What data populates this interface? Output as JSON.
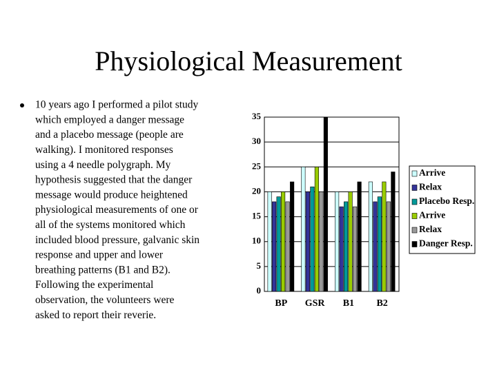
{
  "slide": {
    "title": "Physiological Measurement",
    "bullet_lines": [
      "10 years ago I performed a pilot study",
      "which employed a danger message",
      "and a placebo message (people are",
      "walking).  I monitored responses",
      "using a 4 needle polygraph.  My",
      "hypothesis suggested that the danger",
      "message would produce heightened",
      "physiological measurements of one or",
      "all of the systems monitored which",
      "included blood pressure, galvanic skin",
      "response and upper and lower",
      "breathing patterns (B1 and B2).",
      "Following the experimental",
      "observation, the volunteers were",
      "asked to report their reverie."
    ]
  },
  "chart_data": {
    "type": "bar",
    "categories": [
      "BP",
      "GSR",
      "B1",
      "B2"
    ],
    "series": [
      {
        "name": "Arrive",
        "color": "#ccffff",
        "values": [
          20,
          25,
          20,
          22
        ]
      },
      {
        "name": "Relax",
        "color": "#333399",
        "values": [
          18,
          20,
          17,
          18
        ]
      },
      {
        "name": "Placebo Resp.",
        "color": "#009999",
        "values": [
          19,
          21,
          18,
          19
        ]
      },
      {
        "name": "Arrive",
        "color": "#99cc00",
        "values": [
          20,
          25,
          20,
          22
        ]
      },
      {
        "name": "Relax",
        "color": "#999999",
        "values": [
          18,
          20,
          17,
          18
        ]
      },
      {
        "name": "Danger Resp.",
        "color": "#000000",
        "values": [
          22,
          35,
          22,
          24
        ]
      }
    ],
    "ylim": [
      0,
      35
    ],
    "yticks": [
      0,
      5,
      10,
      15,
      20,
      25,
      30,
      35
    ],
    "grid": true,
    "legend": "right"
  }
}
